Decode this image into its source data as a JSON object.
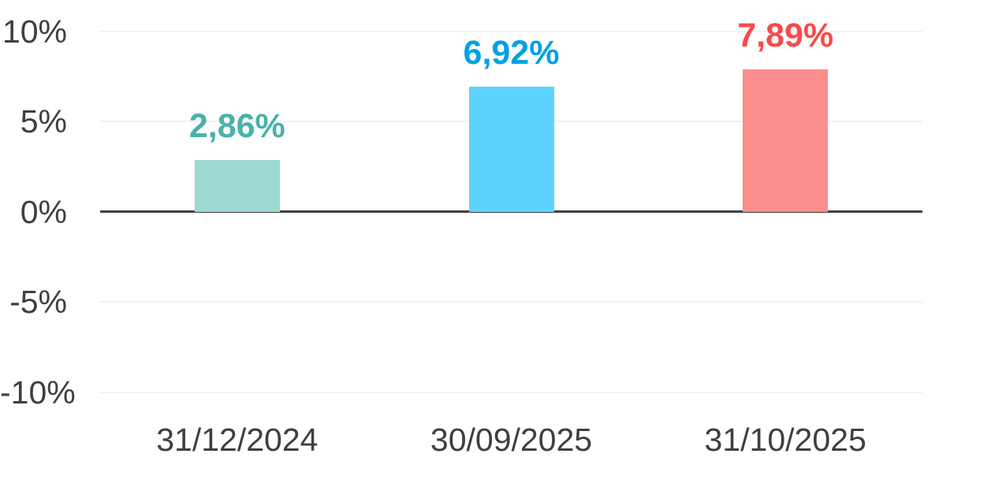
{
  "chart_data": {
    "type": "bar",
    "title": "",
    "xlabel": "",
    "ylabel": "",
    "categories": [
      "31/12/2024",
      "30/09/2025",
      "31/10/2025"
    ],
    "values": [
      2.86,
      6.92,
      7.89
    ],
    "value_labels": [
      "2,86%",
      "6,92%",
      "7,89%"
    ],
    "bar_colors": [
      "#9cd9d2",
      "#5cd3fc",
      "#fb8e8d"
    ],
    "value_label_colors": [
      "#4ab1ab",
      "#00a1e6",
      "#f84a4a"
    ],
    "ylim": [
      -10,
      10
    ],
    "yticks": [
      10,
      5,
      0,
      -5,
      -10
    ],
    "ytick_labels": [
      "10%",
      "5%",
      "0%",
      "-5%",
      "-10%"
    ],
    "grid": true,
    "legend": false
  },
  "colors": {
    "background": "#ffffff",
    "gridline": "#f1f1f1",
    "zero_axis_line": "#404040",
    "tick_text": "#3f3f3f"
  }
}
